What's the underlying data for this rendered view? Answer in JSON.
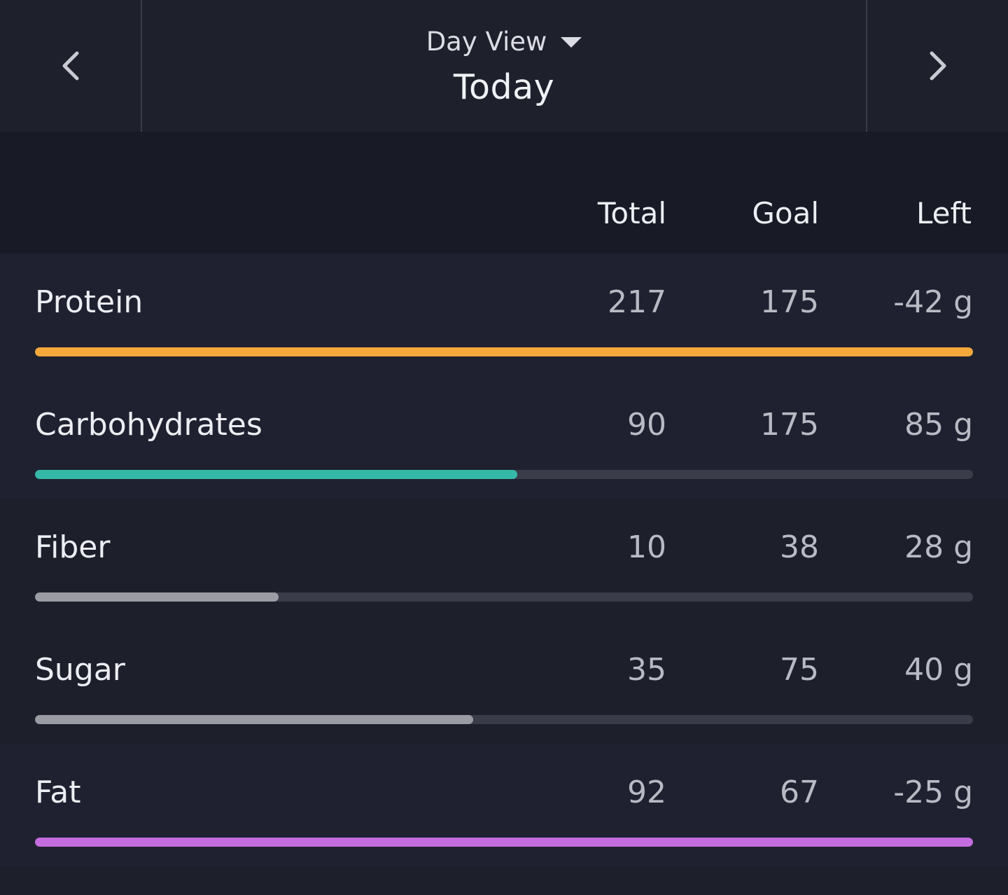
{
  "header": {
    "view_label": "Day View",
    "date_label": "Today",
    "prev_icon": "chevron-left-icon",
    "next_icon": "chevron-right-icon",
    "caret_icon": "caret-down-icon"
  },
  "table": {
    "columns": [
      "Total",
      "Goal",
      "Left"
    ],
    "rows": [
      {
        "name": "Protein",
        "total": "217",
        "goal": "175",
        "left": "-42 g",
        "progress": 1.0,
        "color": "#f5a83b"
      },
      {
        "name": "Carbohydrates",
        "total": "90",
        "goal": "175",
        "left": "85 g",
        "progress": 0.514,
        "color": "#36b8a8"
      },
      {
        "name": "Fiber",
        "total": "10",
        "goal": "38",
        "left": "28 g",
        "progress": 0.26,
        "color": "#9a9ba3"
      },
      {
        "name": "Sugar",
        "total": "35",
        "goal": "75",
        "left": "40 g",
        "progress": 0.467,
        "color": "#9a9ba3"
      },
      {
        "name": "Fat",
        "total": "92",
        "goal": "67",
        "left": "-25 g",
        "progress": 1.0,
        "color": "#c56be0"
      }
    ]
  }
}
